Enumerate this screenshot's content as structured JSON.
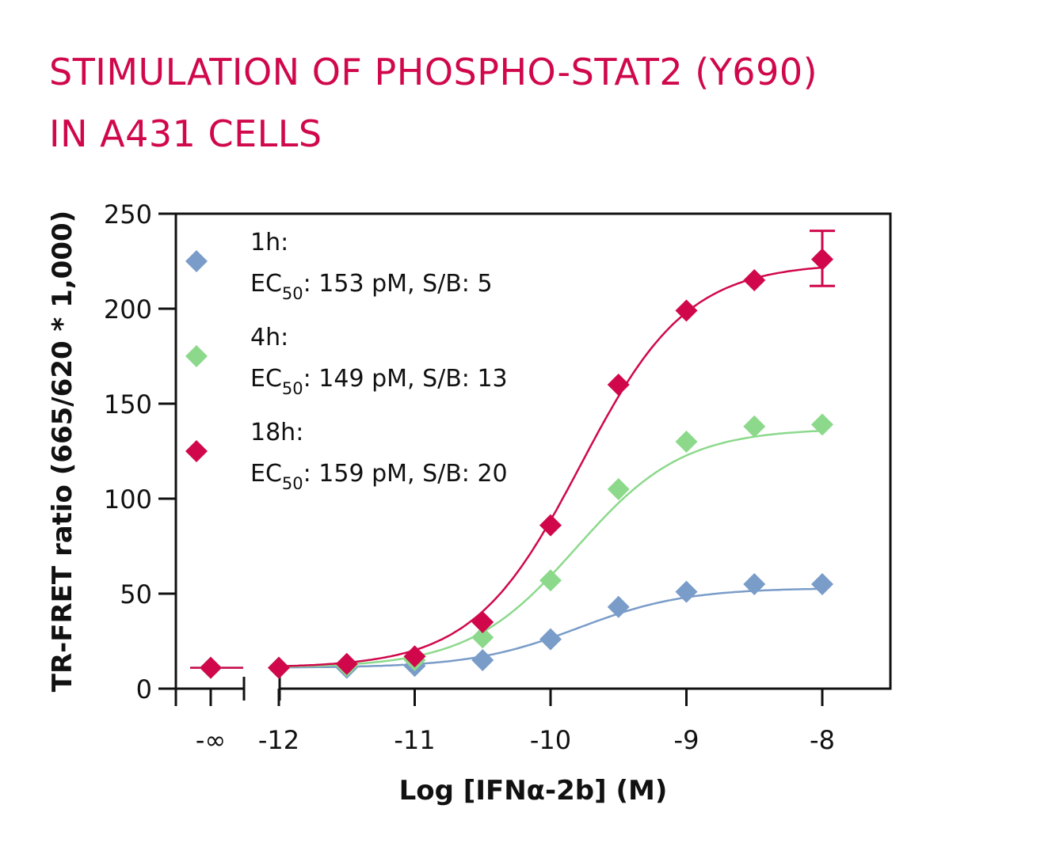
{
  "title": {
    "line1": "STIMULATION OF PHOSPHO-STAT2 (Y690)",
    "line2": "IN A431 CELLS"
  },
  "chart_data": {
    "type": "scatter",
    "xlabel": "Log [IFNα-2b] (M)",
    "ylabel": "TR-FRET ratio (665/620 * 1,000)",
    "xlim": [
      -12.5,
      -7.5
    ],
    "ylim": [
      0,
      250
    ],
    "x_ticks": [
      -12,
      -11,
      -10,
      -9,
      -8
    ],
    "x_tick_labels": [
      "-12",
      "-11",
      "-10",
      "-9",
      "-8"
    ],
    "neg_infinity_label": "-∞",
    "y_ticks": [
      0,
      50,
      100,
      150,
      200,
      250
    ],
    "y_tick_labels": [
      "0",
      "50",
      "100",
      "150",
      "200",
      "250"
    ],
    "x": [
      -12,
      -11.5,
      -11,
      -10.5,
      -10,
      -9.5,
      -9,
      -8.5,
      -8
    ],
    "series": [
      {
        "name": "1h",
        "color": "#7a9cc9",
        "ec50_label": "EC",
        "ec50_subscript": "50",
        "ec50_value": ": 153 pM, S/B: 5",
        "baseline": 11,
        "values": [
          11,
          11,
          12,
          15,
          26,
          43,
          51,
          55,
          55
        ]
      },
      {
        "name": "4h",
        "color": "#8cd98c",
        "ec50_label": "EC",
        "ec50_subscript": "50",
        "ec50_value": ": 149 pM, S/B: 13",
        "baseline": 11,
        "values": [
          11,
          12,
          15,
          27,
          57,
          105,
          130,
          138,
          139
        ]
      },
      {
        "name": "18h",
        "color": "#d0084b",
        "ec50_label": "EC",
        "ec50_subscript": "50",
        "ec50_value": ": 159 pM, S/B: 20",
        "baseline": 11,
        "values": [
          11,
          13,
          17,
          35,
          86,
          160,
          199,
          215,
          226
        ],
        "error_bar": {
          "x": -8,
          "low": 212,
          "high": 241
        }
      }
    ],
    "grid": false,
    "legend_position": "top-left"
  }
}
